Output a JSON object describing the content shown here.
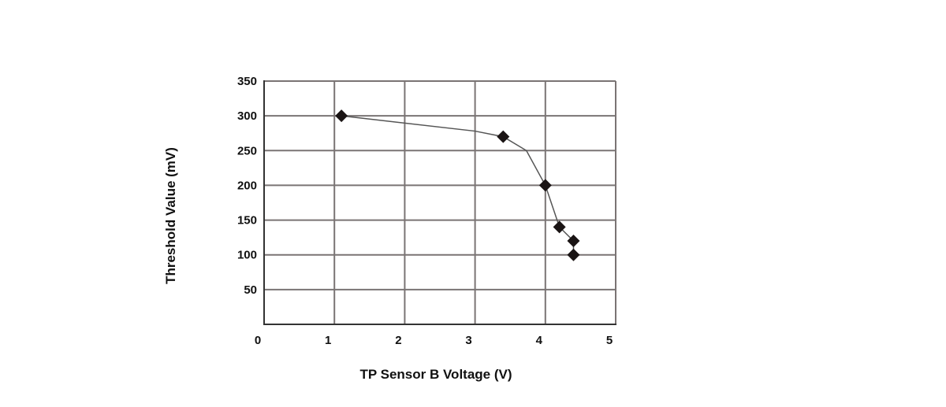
{
  "chart_data": {
    "type": "line",
    "title": "",
    "xlabel": "TP Sensor B Voltage (V)",
    "ylabel": "Threshold Value (mV)",
    "xlim": [
      0,
      5
    ],
    "ylim": [
      0,
      350
    ],
    "x_ticks": [
      "0",
      "1",
      "2",
      "3",
      "4",
      "5"
    ],
    "y_ticks": [
      "50",
      "100",
      "150",
      "200",
      "250",
      "300",
      "350"
    ],
    "grid": true,
    "legend": "none",
    "series": [
      {
        "points": [
          [
            1.1,
            300
          ],
          [
            3.4,
            270
          ],
          [
            4.0,
            200
          ],
          [
            4.2,
            140
          ],
          [
            4.4,
            120
          ],
          [
            4.4,
            100
          ]
        ],
        "line_path": [
          [
            1.1,
            300
          ],
          [
            3.0,
            278
          ],
          [
            3.4,
            270
          ],
          [
            3.73,
            250
          ],
          [
            4.0,
            200
          ],
          [
            4.2,
            140
          ],
          [
            4.4,
            120
          ],
          [
            4.4,
            100
          ]
        ],
        "marker": "diamond",
        "color": "#1a1414"
      }
    ],
    "grid_color": "#7a7474"
  }
}
